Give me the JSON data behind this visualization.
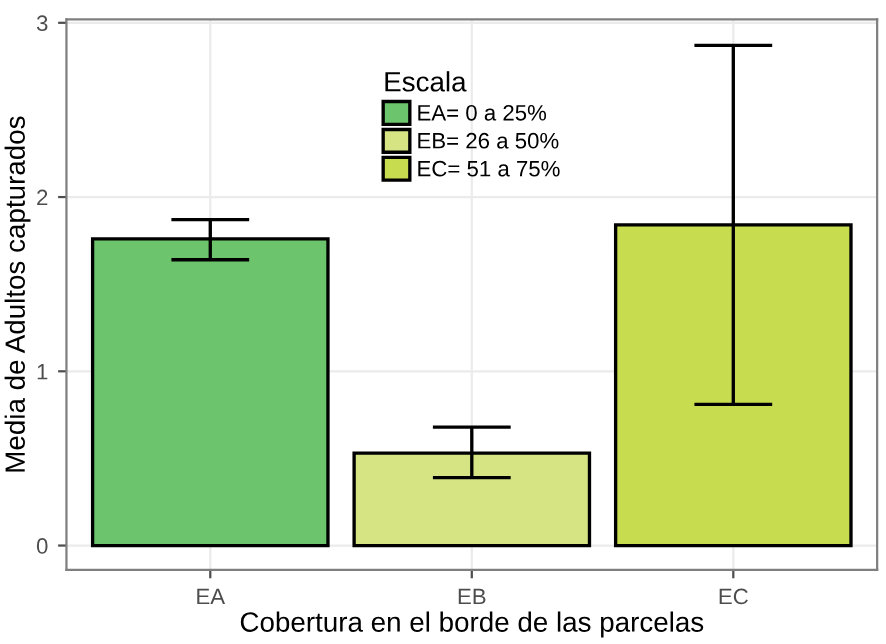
{
  "chart_data": {
    "type": "bar",
    "xlabel": "Cobertura en el borde de las parcelas",
    "ylabel": "Media de Adultos capturados",
    "legend_title": "Escala",
    "categories": [
      "EA",
      "EB",
      "EC"
    ],
    "series": [
      {
        "name": "EA= 0 a 25%",
        "color": "#6cc46c",
        "values": [
          1.76,
          null,
          null
        ],
        "errors": [
          [
            1.64,
            1.87
          ],
          null,
          null
        ]
      },
      {
        "name": "EB= 26 a 50%",
        "color": "#d6e484",
        "values": [
          null,
          0.53,
          null
        ],
        "errors": [
          null,
          [
            0.39,
            0.68
          ],
          null
        ]
      },
      {
        "name": "EC= 51 a 75%",
        "color": "#c8dc50",
        "values": [
          null,
          null,
          1.84
        ],
        "errors": [
          null,
          null,
          [
            0.81,
            2.87
          ]
        ]
      }
    ],
    "ylim": [
      -0.14,
      3.02
    ],
    "yticks": [
      0,
      1,
      2,
      3
    ],
    "grid": true,
    "legend": "top"
  }
}
